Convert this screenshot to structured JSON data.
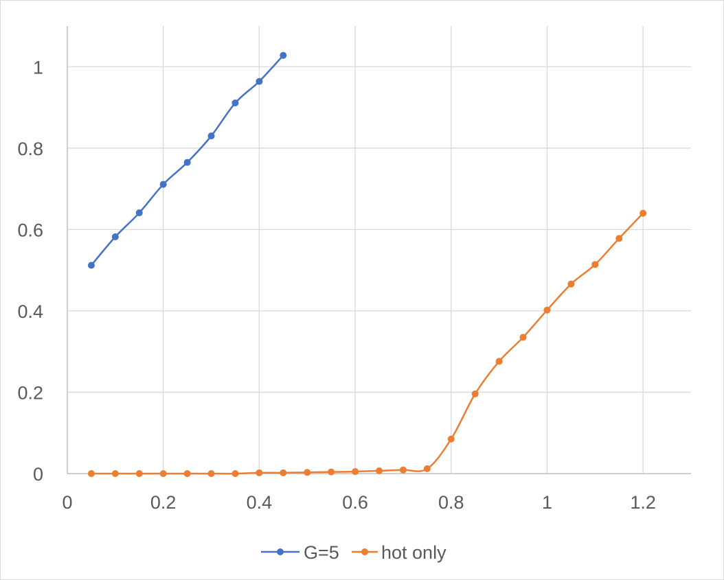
{
  "chart_data": {
    "type": "line",
    "title": "",
    "xlabel": "",
    "ylabel": "",
    "xlim": [
      0,
      1.3
    ],
    "ylim": [
      0,
      1.1
    ],
    "x_ticks": [
      "0",
      "0.2",
      "0.4",
      "0.6",
      "0.8",
      "1",
      "1.2"
    ],
    "y_ticks": [
      "0",
      "0.2",
      "0.4",
      "0.6",
      "0.8",
      "1"
    ],
    "grid": true,
    "smooth": true,
    "legend_position": "bottom",
    "series": [
      {
        "name": "G=5",
        "color": "#4472C4",
        "x": [
          0.05,
          0.1,
          0.15,
          0.2,
          0.25,
          0.3,
          0.35,
          0.4,
          0.45
        ],
        "y": [
          0.512,
          0.582,
          0.641,
          0.711,
          0.765,
          0.83,
          0.911,
          0.964,
          1.028
        ]
      },
      {
        "name": "hot only",
        "color": "#ED7D31",
        "x": [
          0.05,
          0.1,
          0.15,
          0.2,
          0.25,
          0.3,
          0.35,
          0.4,
          0.45,
          0.5,
          0.55,
          0.6,
          0.65,
          0.7,
          0.75,
          0.8,
          0.85,
          0.9,
          0.95,
          1.0,
          1.05,
          1.1,
          1.15,
          1.2
        ],
        "y": [
          0.0,
          0.0,
          0.0,
          0.0,
          0.0,
          0.0,
          0.0,
          0.002,
          0.002,
          0.003,
          0.004,
          0.005,
          0.007,
          0.009,
          0.012,
          0.085,
          0.196,
          0.276,
          0.335,
          0.402,
          0.466,
          0.514,
          0.578,
          0.64
        ]
      }
    ]
  }
}
